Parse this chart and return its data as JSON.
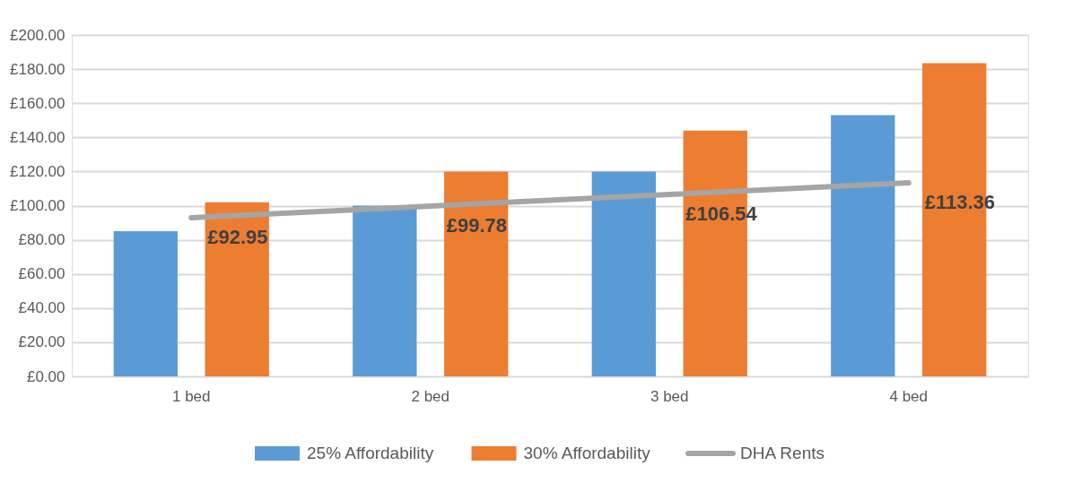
{
  "chart_data": {
    "type": "bar",
    "categories": [
      "1 bed",
      "2 bed",
      "3 bed",
      "4 bed"
    ],
    "series": [
      {
        "name": "25% Affordability",
        "color": "#5b9bd5",
        "values": [
          85,
          100,
          120,
          153
        ]
      },
      {
        "name": "30% Affordability",
        "color": "#ed7d31",
        "values": [
          102,
          120,
          144,
          183.5
        ]
      },
      {
        "name": "DHA  Rents",
        "type": "line",
        "color": "#a5a5a5",
        "values": [
          92.95,
          99.78,
          106.54,
          113.36
        ],
        "value_labels": [
          "£92.95",
          "£99.78",
          "£106.54",
          "£113.36"
        ]
      }
    ],
    "ylim": [
      0,
      200
    ],
    "yticks": [
      {
        "value": 0,
        "label": "£0.00"
      },
      {
        "value": 20,
        "label": "£20.00"
      },
      {
        "value": 40,
        "label": "£40.00"
      },
      {
        "value": 60,
        "label": "£60.00"
      },
      {
        "value": 80,
        "label": "£80.00"
      },
      {
        "value": 100,
        "label": "£100.00"
      },
      {
        "value": 120,
        "label": "£120.00"
      },
      {
        "value": 140,
        "label": "£140.00"
      },
      {
        "value": 160,
        "label": "£160.00"
      },
      {
        "value": 180,
        "label": "£180.00"
      },
      {
        "value": 200,
        "label": "£200.00"
      }
    ],
    "grid": "y",
    "legend": "bottom",
    "marker": "none",
    "line_style": "solid"
  }
}
